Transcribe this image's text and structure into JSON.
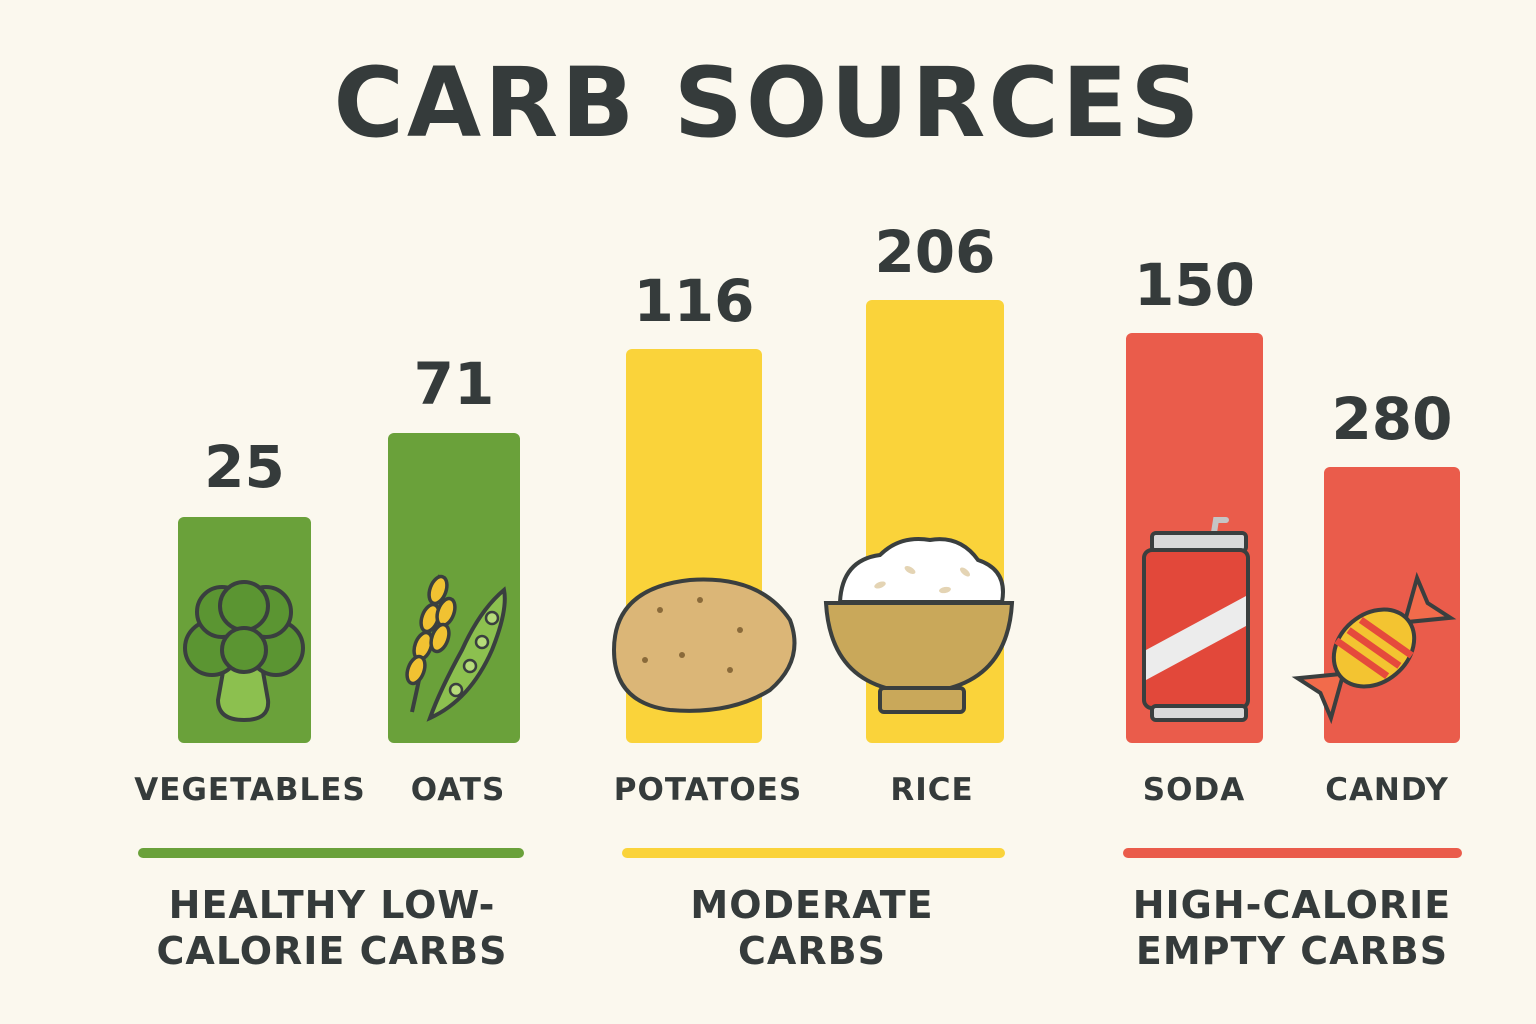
{
  "chart_data": {
    "type": "bar",
    "title": "CARB SOURCES",
    "xlabel": "",
    "ylabel": "",
    "grid": false,
    "legend": "none",
    "categories": [
      "VEGETABLES",
      "OATS",
      "POTATOES",
      "RICE",
      "SODA",
      "CANDY"
    ],
    "values": [
      25,
      71,
      116,
      206,
      150,
      280
    ],
    "groups": [
      {
        "label_line1": "HEALTHY LOW-",
        "label_line2": "CALORIE CARBS",
        "color": "#6aa13a",
        "categories": [
          "VEGETABLES",
          "OATS"
        ]
      },
      {
        "label_line1": "MODERATE",
        "label_line2": "CARBS",
        "color": "#fad33a",
        "categories": [
          "POTATOES",
          "RICE"
        ]
      },
      {
        "label_line1": "HIGH-CALORIE",
        "label_line2": "EMPTY CARBS",
        "color": "#ea5c4b",
        "categories": [
          "SODA",
          "CANDY"
        ]
      }
    ],
    "icons": [
      "broccoli-icon",
      "wheat-pea-icon",
      "potato-icon",
      "rice-bowl-icon",
      "soda-can-icon",
      "candy-icon"
    ]
  }
}
